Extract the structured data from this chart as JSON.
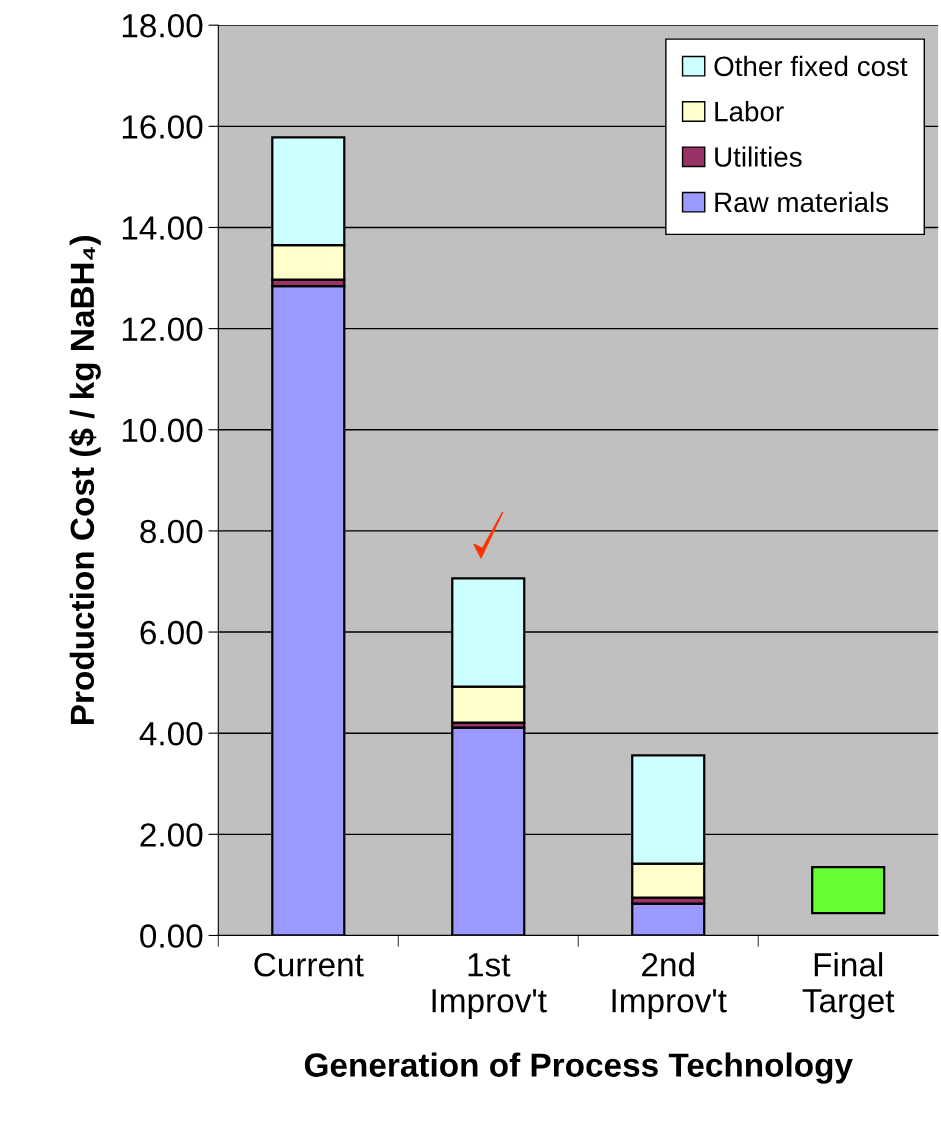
{
  "chart_data": {
    "type": "bar",
    "stacked": true,
    "xlabel": "Generation of Process Technology",
    "ylabel": "Production Cost ($ / kg NaBH₄)",
    "categories": [
      "Current",
      "1st\nImprov't",
      "2nd\nImprov't",
      "Final\nTarget"
    ],
    "series": [
      {
        "name": "Raw materials",
        "color": "#9999ff",
        "values": [
          12.84,
          4.11,
          0.63,
          null
        ]
      },
      {
        "name": "Utilities",
        "color": "#993366",
        "values": [
          0.13,
          0.1,
          0.12,
          null
        ]
      },
      {
        "name": "Labor",
        "color": "#ffffcc",
        "values": [
          0.68,
          0.71,
          0.67,
          null
        ]
      },
      {
        "name": "Other fixed cost",
        "color": "#ccffff",
        "values": [
          2.13,
          2.14,
          2.14,
          null
        ]
      },
      {
        "color": "#66ff33",
        "values": [
          null,
          null,
          null,
          0.91
        ],
        "base": [
          null,
          null,
          null,
          0.44
        ]
      }
    ],
    "ylim": [
      0,
      18
    ],
    "yticks": [
      {
        "value": 0,
        "label": "0.00"
      },
      {
        "value": 2,
        "label": "2.00"
      },
      {
        "value": 4,
        "label": "4.00"
      },
      {
        "value": 6,
        "label": "6.00"
      },
      {
        "value": 8,
        "label": "8.00"
      },
      {
        "value": 10,
        "label": "10.00"
      },
      {
        "value": 12,
        "label": "12.00"
      },
      {
        "value": 14,
        "label": "14.00"
      },
      {
        "value": 16,
        "label": "16.00"
      },
      {
        "value": 18,
        "label": "18.00"
      }
    ],
    "grid": "y",
    "legend": "top right"
  }
}
